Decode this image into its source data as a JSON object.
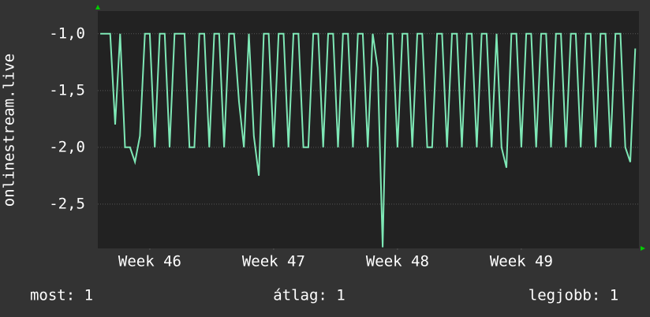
{
  "chart_data": {
    "type": "line",
    "y_label": "onlinestream.live",
    "x": [
      45.1,
      45.14,
      45.18,
      45.22,
      45.26,
      45.3,
      45.34,
      45.38,
      45.42,
      45.46,
      45.5,
      45.54,
      45.58,
      45.62,
      45.66,
      45.7,
      45.74,
      45.78,
      45.82,
      45.86,
      45.9,
      45.94,
      45.98,
      46.02,
      46.06,
      46.1,
      46.14,
      46.18,
      46.22,
      46.26,
      46.3,
      46.34,
      46.38,
      46.42,
      46.46,
      46.5,
      46.54,
      46.58,
      46.62,
      46.66,
      46.7,
      46.74,
      46.78,
      46.82,
      46.86,
      46.9,
      46.94,
      46.98,
      47.02,
      47.06,
      47.1,
      47.14,
      47.18,
      47.22,
      47.26,
      47.3,
      47.34,
      47.38,
      47.42,
      47.46,
      47.5,
      47.54,
      47.58,
      47.62,
      47.66,
      47.7,
      47.74,
      47.78,
      47.82,
      47.86,
      47.9,
      47.94,
      47.98,
      48.02,
      48.06,
      48.1,
      48.14,
      48.18,
      48.22,
      48.26,
      48.3,
      48.34,
      48.38,
      48.42,
      48.46,
      48.5,
      48.54,
      48.58,
      48.62,
      48.66,
      48.7,
      48.74,
      48.78,
      48.82,
      48.86,
      48.9,
      48.94,
      48.98,
      49.02,
      49.06,
      49.1,
      49.14,
      49.18,
      49.22,
      49.26,
      49.3,
      49.34,
      49.38,
      49.42
    ],
    "series": [
      {
        "color": "#7ee8b6",
        "values": [
          -1,
          -1,
          -1,
          -1.8,
          -1,
          -2,
          -2,
          -2.13,
          -1.9,
          -1,
          -1,
          -2,
          -1,
          -1,
          -2,
          -1,
          -1,
          -1,
          -2,
          -2,
          -1,
          -1,
          -2,
          -1,
          -1,
          -2,
          -1,
          -1,
          -1.6,
          -2,
          -1,
          -1.9,
          -2.25,
          -1,
          -1,
          -2,
          -1,
          -1,
          -2,
          -1,
          -1,
          -2,
          -2,
          -1,
          -1,
          -2,
          -1,
          -1,
          -2,
          -1,
          -1,
          -2,
          -1,
          -1,
          -2,
          -1,
          -1.3,
          -2.88,
          -1,
          -1,
          -2,
          -1,
          -1,
          -2,
          -1,
          -1,
          -2,
          -2,
          -1,
          -1,
          -2,
          -1,
          -1,
          -2,
          -1,
          -1,
          -2,
          -1,
          -1,
          -2,
          -1,
          -2,
          -2.18,
          -1,
          -1,
          -2,
          -1,
          -1,
          -2,
          -1,
          -1,
          -2,
          -1,
          -1,
          -2,
          -1,
          -1,
          -2,
          -1,
          -1,
          -2,
          -1,
          -1,
          -2,
          -1,
          -1,
          -2,
          -2.13,
          -1.13
        ]
      }
    ],
    "xlim": [
      45.08,
      49.45
    ],
    "xticks": [
      {
        "value": 45.5,
        "label": "Week 46"
      },
      {
        "value": 46.5,
        "label": "Week 47"
      },
      {
        "value": 47.5,
        "label": "Week 48"
      },
      {
        "value": 48.5,
        "label": "Week 49"
      }
    ],
    "ylim": [
      -2.89,
      -0.8
    ],
    "yticks": [
      {
        "value": -1,
        "label": "-1,0"
      },
      {
        "value": -1.5,
        "label": "-1,5"
      },
      {
        "value": -2,
        "label": "-2,0"
      },
      {
        "value": -2.5,
        "label": "-2,5"
      }
    ],
    "grid": true,
    "footer": [
      "most: 1",
      "átlag: 1",
      "legjobb: 1"
    ]
  }
}
